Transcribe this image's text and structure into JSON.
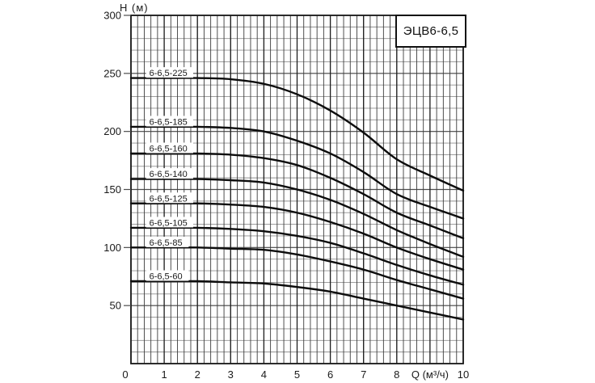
{
  "chart_data": {
    "type": "line",
    "title_box": "ЭЦВ6-6,5",
    "ylabel": "H (м)",
    "xlabel": "Q (м³/ч)",
    "xlim": [
      0,
      10
    ],
    "ylim": [
      0,
      300
    ],
    "x_minor_step": 0.2,
    "x_major_step": 1,
    "y_minor_step": 10,
    "y_major_step": 50,
    "grid": true,
    "legend_position": "inline-curve-labels",
    "x_ticks": [
      {
        "v": 0,
        "label": "0"
      },
      {
        "v": 1,
        "label": "1"
      },
      {
        "v": 2,
        "label": "2"
      },
      {
        "v": 3,
        "label": "3"
      },
      {
        "v": 4,
        "label": "4"
      },
      {
        "v": 5,
        "label": "5"
      },
      {
        "v": 6,
        "label": "6"
      },
      {
        "v": 7,
        "label": "7"
      },
      {
        "v": 8,
        "label": "8"
      },
      {
        "v": 9,
        "label": "Q (м³/ч)"
      },
      {
        "v": 10,
        "label": "10"
      }
    ],
    "y_ticks": [
      {
        "v": 50,
        "label": "50"
      },
      {
        "v": 100,
        "label": "100"
      },
      {
        "v": 150,
        "label": "150"
      },
      {
        "v": 200,
        "label": "200"
      },
      {
        "v": 250,
        "label": "250"
      },
      {
        "v": 300,
        "label": "300"
      }
    ],
    "x": [
      0,
      1,
      2,
      3,
      4,
      5,
      6,
      7,
      8,
      9,
      10
    ],
    "series": [
      {
        "name": "6-6,5-225",
        "values": [
          246,
          246,
          246,
          245,
          241,
          232,
          218,
          199,
          176,
          162,
          149
        ]
      },
      {
        "name": "6-6,5-185",
        "values": [
          204,
          204,
          204,
          203,
          200,
          192,
          181,
          165,
          146,
          135,
          125
        ]
      },
      {
        "name": "6-6,5-160",
        "values": [
          181,
          181,
          181,
          180,
          177,
          171,
          160,
          146,
          130,
          119,
          108
        ]
      },
      {
        "name": "6-6,5-140",
        "values": [
          159,
          159,
          159,
          158,
          156,
          150,
          141,
          129,
          115,
          103,
          92
        ]
      },
      {
        "name": "6-6,5-125",
        "values": [
          138,
          138,
          138,
          137,
          135,
          130,
          122,
          112,
          100,
          90,
          81
        ]
      },
      {
        "name": "6-6,5-105",
        "values": [
          117,
          117,
          117,
          116,
          114,
          110,
          104,
          95,
          85,
          76,
          68
        ]
      },
      {
        "name": "6-6,5-85",
        "values": [
          100,
          100,
          100,
          99,
          98,
          94,
          88,
          81,
          72,
          64,
          56
        ]
      },
      {
        "name": "6-6,5-60",
        "values": [
          71,
          71,
          71,
          70,
          69,
          66,
          62,
          56,
          50,
          44,
          38
        ]
      }
    ]
  },
  "colors": {
    "background": "#ffffff",
    "curve": "#0d0d0d",
    "grid_minor_h": "#8f8f8f",
    "grid_major_h": "#4d4d4d",
    "grid_minor_v": "#3c3c3c",
    "grid_major_v": "#1e1e1e",
    "plot_border": "#1a1a1a",
    "text": "#1a1a1a"
  }
}
